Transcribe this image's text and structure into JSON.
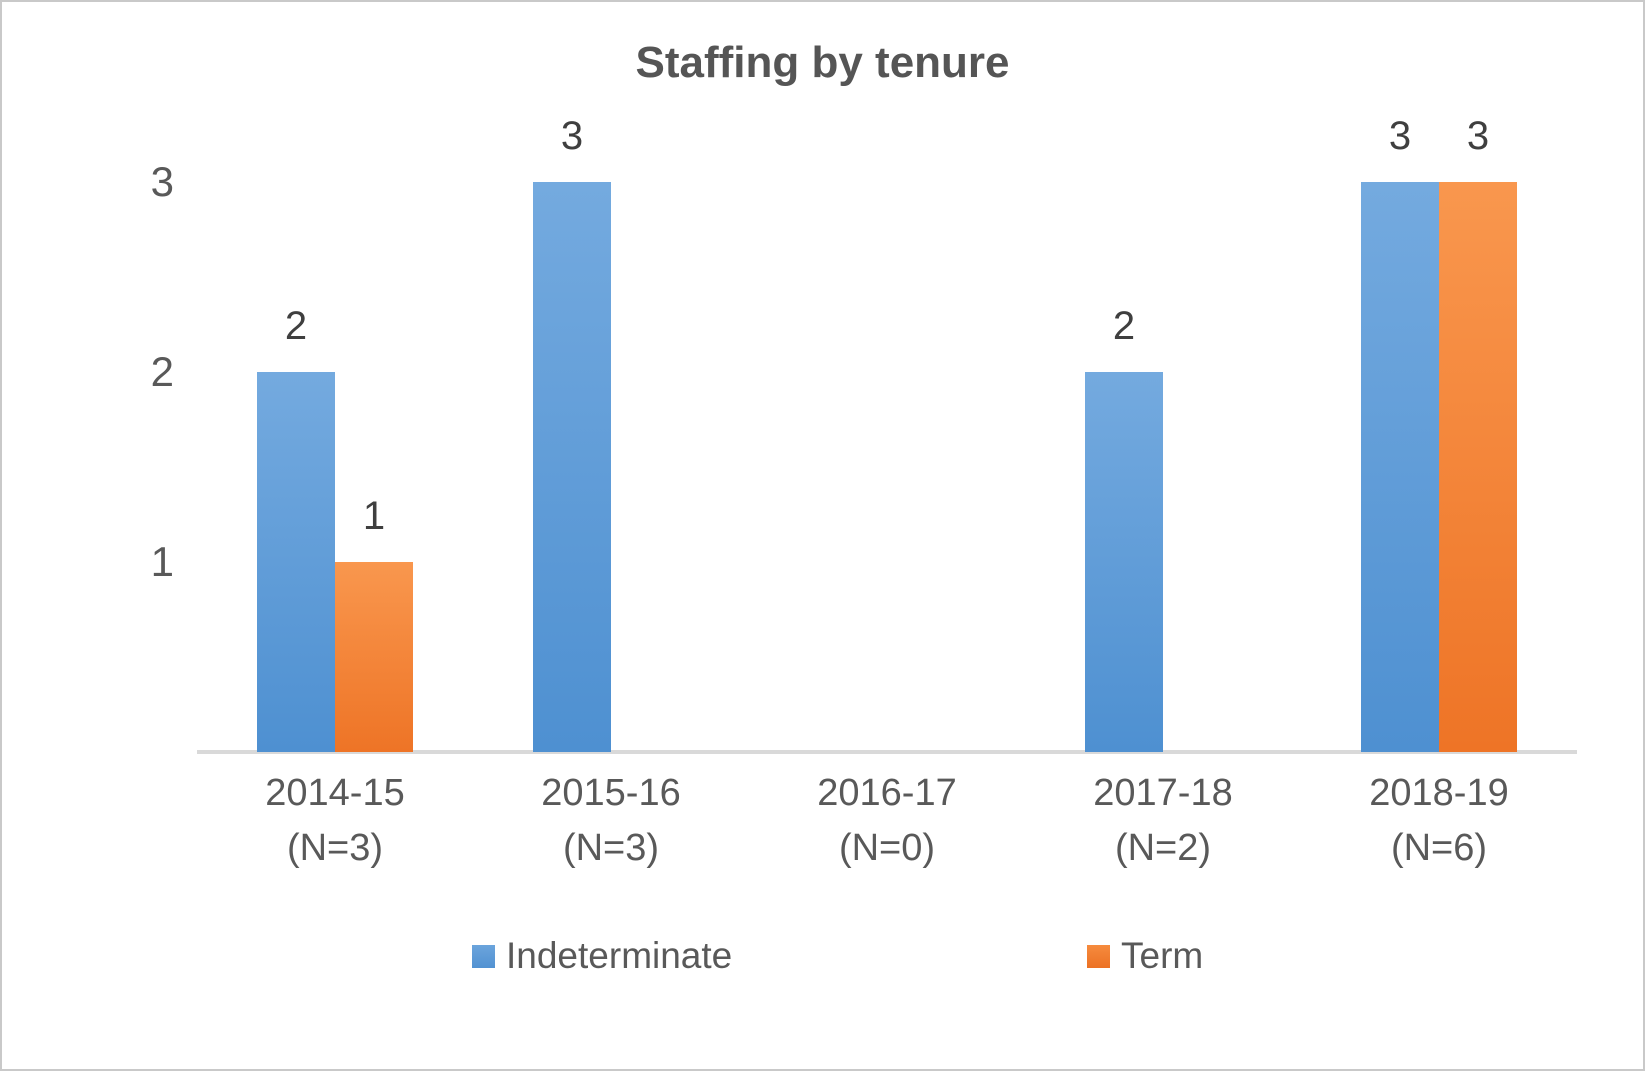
{
  "chart_data": {
    "type": "bar",
    "title": "Staffing by tenure",
    "categories": [
      "2014-15\n(N=3)",
      "2015-16\n(N=3)",
      "2016-17\n(N=0)",
      "2017-18\n(N=2)",
      "2018-19\n(N=6)"
    ],
    "series": [
      {
        "name": "Indeterminate",
        "values": [
          2,
          3,
          0,
          2,
          3
        ],
        "color_top": "#74aadf",
        "color_bottom": "#4e90d1"
      },
      {
        "name": "Term",
        "values": [
          1,
          0,
          0,
          0,
          3
        ],
        "color_top": "#f9974e",
        "color_bottom": "#ee7426"
      }
    ],
    "yticks": [
      1,
      2,
      3
    ],
    "ylim": [
      0,
      3
    ],
    "data_labels": true,
    "grid": false,
    "legend_position": "bottom",
    "axis_line_color": "#d9d9d9",
    "text_color": "#595959",
    "title_color": "#555555"
  }
}
